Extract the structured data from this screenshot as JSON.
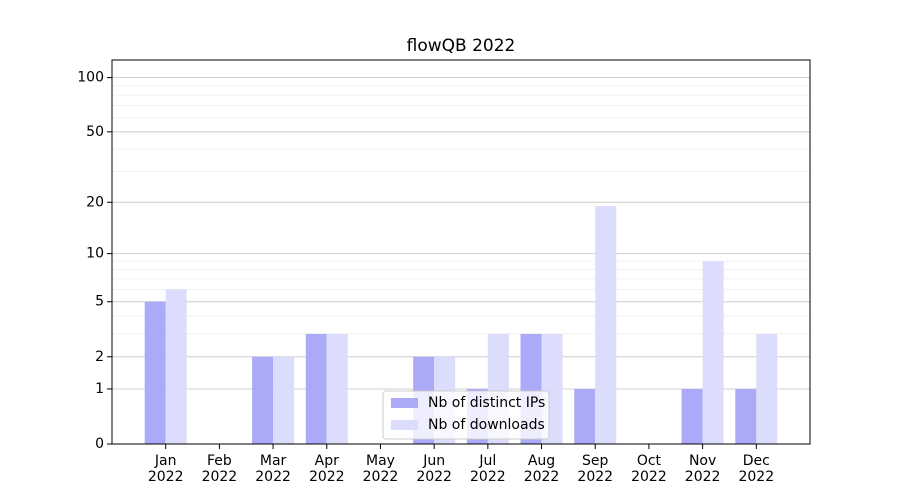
{
  "chart_data": {
    "type": "bar",
    "title": "flowQB 2022",
    "scale": "log1p",
    "categories": [
      [
        "Jan",
        "2022"
      ],
      [
        "Feb",
        "2022"
      ],
      [
        "Mar",
        "2022"
      ],
      [
        "Apr",
        "2022"
      ],
      [
        "May",
        "2022"
      ],
      [
        "Jun",
        "2022"
      ],
      [
        "Jul",
        "2022"
      ],
      [
        "Aug",
        "2022"
      ],
      [
        "Sep",
        "2022"
      ],
      [
        "Oct",
        "2022"
      ],
      [
        "Nov",
        "2022"
      ],
      [
        "Dec",
        "2022"
      ]
    ],
    "series": [
      {
        "name": "Nb of distinct IPs",
        "color": "#aaaaf8",
        "values": [
          5,
          0,
          2,
          3,
          0,
          2,
          1,
          3,
          1,
          0,
          1,
          1
        ]
      },
      {
        "name": "Nb of downloads",
        "color": "#dcdcfc",
        "values": [
          6,
          0,
          2,
          3,
          0,
          2,
          3,
          3,
          19,
          0,
          9,
          3
        ]
      }
    ],
    "ylim": [
      0,
      125
    ],
    "yticks": [
      0,
      1,
      2,
      5,
      10,
      20,
      50,
      100
    ],
    "grid": true,
    "legend": "lower center"
  }
}
